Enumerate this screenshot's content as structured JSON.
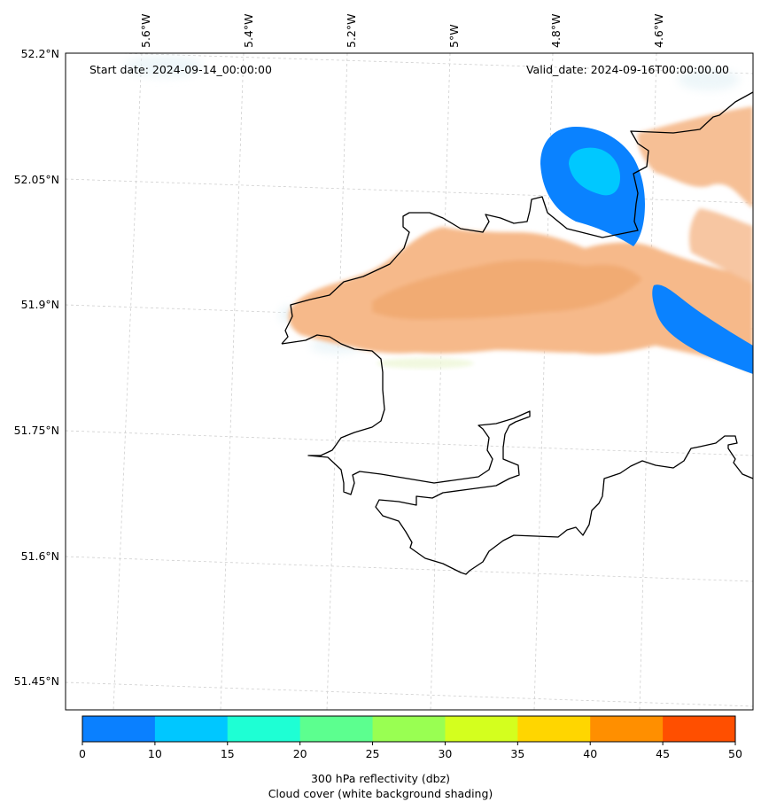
{
  "header": {
    "start_date": "Start date: 2024-09-14_00:00:00",
    "valid_date": "Valid_date: 2024-09-16T00:00:00.00"
  },
  "map": {
    "lon_ticks": [
      "5.6°W",
      "5.4°W",
      "5.2°W",
      "5°W",
      "4.8°W",
      "4.6°W"
    ],
    "lat_ticks": [
      "52.2°N",
      "52.05°N",
      "51.9°N",
      "51.75°N",
      "51.6°N",
      "51.45°N"
    ],
    "gridlines": "on",
    "coastline_color": "#000000",
    "cloud_shading_color": "#f2a76a",
    "reflectivity_band_colors": [
      "#0a82ff",
      "#00c8ff"
    ]
  },
  "colorbar": {
    "ticks": [
      "0",
      "10",
      "15",
      "20",
      "25",
      "30",
      "35",
      "40",
      "45",
      "50"
    ],
    "colors": [
      "#0a80ff",
      "#00c7ff",
      "#1effd4",
      "#5cff8f",
      "#99ff52",
      "#d4ff1e",
      "#ffd600",
      "#ff8f00",
      "#ff4f00"
    ],
    "label_line1": "300 hPa reflectivity (dbz)",
    "label_line2": "Cloud cover (white background shading)"
  }
}
